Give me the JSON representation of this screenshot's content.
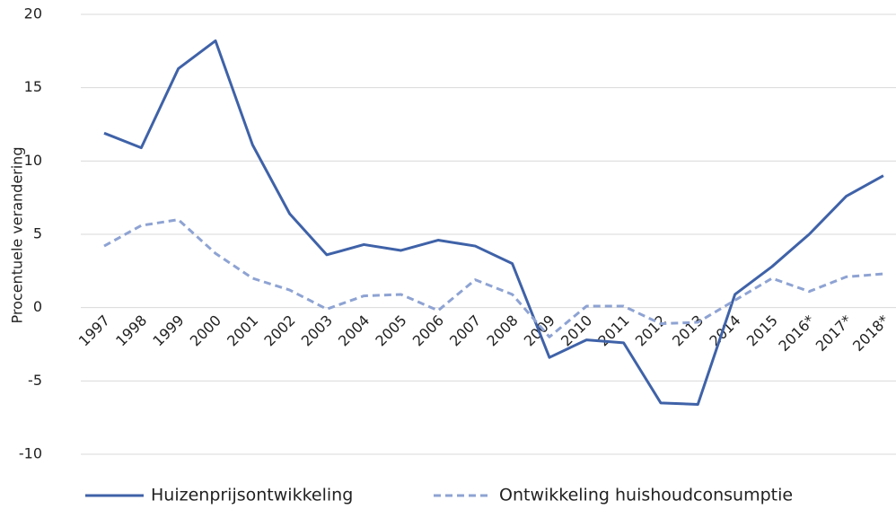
{
  "chart_data": {
    "type": "line",
    "y_label": "Procentuele verandering",
    "categories": [
      "1997",
      "1998",
      "1999",
      "2000",
      "2001",
      "2002",
      "2003",
      "2004",
      "2005",
      "2006",
      "2007",
      "2008",
      "2009",
      "2010",
      "2011",
      "2012",
      "2013",
      "2014",
      "2015",
      "2016*",
      "2017*",
      "2018*"
    ],
    "series": [
      {
        "name": "Huizenprijsontwikkeling",
        "color": "#3f62a8",
        "dash": false,
        "values": [
          11.9,
          10.9,
          16.3,
          18.2,
          11.1,
          6.4,
          3.6,
          4.3,
          3.9,
          4.6,
          4.2,
          3.0,
          -3.4,
          -2.2,
          -2.4,
          -6.5,
          -6.6,
          0.9,
          2.8,
          5.0,
          7.6,
          9.0
        ]
      },
      {
        "name": "Ontwikkeling huishoudconsumptie",
        "color": "#8ea3d3",
        "dash": true,
        "values": [
          4.2,
          5.6,
          6.0,
          3.7,
          2.0,
          1.2,
          -0.1,
          0.8,
          0.9,
          -0.2,
          1.9,
          0.9,
          -2.0,
          0.1,
          0.1,
          -1.1,
          -1.0,
          0.5,
          2.0,
          1.1,
          2.1,
          2.3
        ]
      }
    ],
    "ylim": [
      -10,
      20
    ],
    "yticks": [
      -10,
      -5,
      0,
      5,
      10,
      15,
      20
    ],
    "grid": true
  }
}
